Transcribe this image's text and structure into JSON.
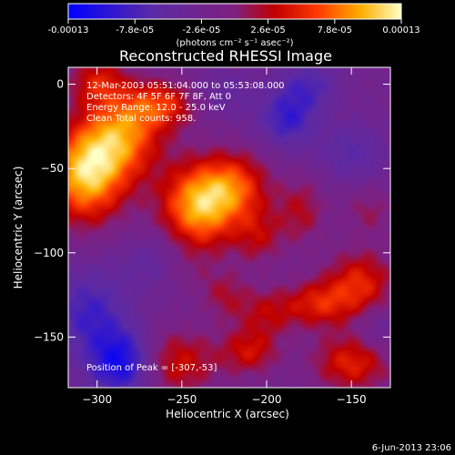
{
  "chart_data": {
    "type": "heatmap",
    "title": "Reconstructed RHESSI Image",
    "xlabel": "Heliocentric X (arcsec)",
    "ylabel": "Heliocentric Y (arcsec)",
    "xlim": [
      -317,
      -127
    ],
    "ylim": [
      -180,
      10
    ],
    "xticks": [
      -300,
      -250,
      -200,
      -150
    ],
    "yticks": [
      0,
      -50,
      -100,
      -150
    ],
    "colorbar": {
      "ticks": [
        "-0.00013",
        "-7.8e-05",
        "-2.6e-05",
        "2.6e-05",
        "7.8e-05",
        "0.00013"
      ],
      "units": "(photons cm⁻² s⁻¹ asec⁻²)",
      "range": [
        -0.00013,
        0.00013
      ]
    },
    "annotations": [
      "12-Mar-2003 05:51:04.000 to 05:53:08.000",
      "Detectors: 4F 5F 6F 7F 8F, Att 0",
      "Energy Range: 12.0 - 25.0 keV",
      "Clean     Total counts: 958."
    ],
    "peak_label": "Position of Peak = [-307,-53]",
    "peak": [
      -307,
      -53
    ],
    "blobs": [
      {
        "x": -307,
        "y": -53,
        "sx": 16,
        "sy": 20,
        "a": 1.0
      },
      {
        "x": -285,
        "y": -30,
        "sx": 16,
        "sy": 18,
        "a": 0.75
      },
      {
        "x": -262,
        "y": -12,
        "sx": 14,
        "sy": 10,
        "a": 0.55
      },
      {
        "x": -240,
        "y": -72,
        "sx": 16,
        "sy": 18,
        "a": 0.95
      },
      {
        "x": -218,
        "y": -60,
        "sx": 14,
        "sy": 14,
        "a": 0.55
      },
      {
        "x": -205,
        "y": -90,
        "sx": 10,
        "sy": 12,
        "a": 0.35
      },
      {
        "x": -300,
        "y": 2,
        "sx": 12,
        "sy": 10,
        "a": 0.45
      },
      {
        "x": -180,
        "y": -75,
        "sx": 10,
        "sy": 14,
        "a": 0.35
      },
      {
        "x": -170,
        "y": -130,
        "sx": 14,
        "sy": 10,
        "a": 0.5
      },
      {
        "x": -145,
        "y": -118,
        "sx": 14,
        "sy": 14,
        "a": 0.55
      },
      {
        "x": -200,
        "y": -135,
        "sx": 12,
        "sy": 10,
        "a": 0.35
      },
      {
        "x": -210,
        "y": -158,
        "sx": 12,
        "sy": 10,
        "a": 0.45
      },
      {
        "x": -150,
        "y": -165,
        "sx": 16,
        "sy": 12,
        "a": 0.55
      },
      {
        "x": -255,
        "y": -165,
        "sx": 18,
        "sy": 14,
        "a": 0.5
      },
      {
        "x": -225,
        "y": -125,
        "sx": 10,
        "sy": 10,
        "a": 0.3
      },
      {
        "x": -140,
        "y": -75,
        "sx": 10,
        "sy": 10,
        "a": 0.25
      },
      {
        "x": -250,
        "y": -110,
        "sx": 12,
        "sy": 10,
        "a": 0.15
      },
      {
        "x": -285,
        "y": -165,
        "sx": 14,
        "sy": 14,
        "a": -0.75
      },
      {
        "x": -305,
        "y": -135,
        "sx": 16,
        "sy": 18,
        "a": -0.45
      },
      {
        "x": -188,
        "y": -20,
        "sx": 12,
        "sy": 12,
        "a": -0.5
      },
      {
        "x": -175,
        "y": 0,
        "sx": 12,
        "sy": 10,
        "a": -0.35
      },
      {
        "x": -150,
        "y": -40,
        "sx": 14,
        "sy": 12,
        "a": -0.3
      },
      {
        "x": -225,
        "y": -5,
        "sx": 12,
        "sy": 10,
        "a": -0.2
      },
      {
        "x": -265,
        "y": -105,
        "sx": 14,
        "sy": 12,
        "a": -0.25
      },
      {
        "x": -135,
        "y": -145,
        "sx": 10,
        "sy": 10,
        "a": -0.2
      }
    ],
    "base_level": -0.18
  },
  "footer_date": "6-Jun-2013 23:06"
}
